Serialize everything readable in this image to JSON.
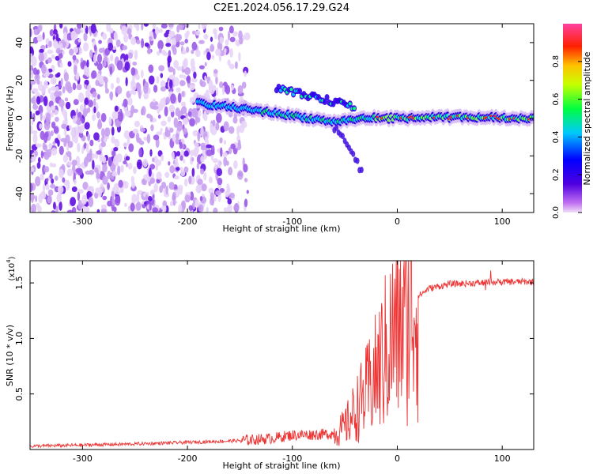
{
  "title": "C2E1.2024.056.17.29.G24",
  "chart_data": [
    {
      "type": "heatmap",
      "xlabel": "Height of straight line (km)",
      "ylabel": "Frequency (Hz)",
      "xlim": [
        -350,
        130
      ],
      "ylim": [
        -50,
        50
      ],
      "x_ticks": [
        -300,
        -200,
        -100,
        0,
        100
      ],
      "y_ticks": [
        -40,
        -20,
        0,
        20,
        40
      ],
      "colorbar": {
        "label": "Normalized spectral amplitude",
        "range": [
          0,
          1
        ],
        "ticks": [
          "0.0",
          "0.2",
          "0.4",
          "0.6",
          "0.8"
        ],
        "ticks_values": [
          0,
          0.2,
          0.4,
          0.6,
          0.8
        ]
      },
      "features": {
        "noise_region_x": [
          -350,
          -160
        ],
        "main_tone_track": {
          "x": [
            -190,
            -120,
            -60,
            -30,
            0,
            60,
            130
          ],
          "y": [
            8,
            3,
            -2,
            0,
            0,
            0.5,
            0
          ]
        },
        "secondary_track": {
          "x": [
            -115,
            -70,
            -40
          ],
          "y": [
            16,
            10,
            6
          ]
        },
        "drifting_branch": {
          "x": [
            -60,
            -45,
            -35
          ],
          "y": [
            -5,
            -15,
            -28
          ]
        }
      }
    },
    {
      "type": "line",
      "xlabel": "Height of straight line (km)",
      "ylabel": "SNR (10 * v/v)",
      "y_multiplier": "(x10",
      "y_multiplier_exp": "4",
      "y_multiplier_close": ")",
      "xlim": [
        -350,
        130
      ],
      "ylim": [
        0,
        1.7
      ],
      "x_ticks": [
        -300,
        -200,
        -100,
        0,
        100
      ],
      "y_ticks": [
        "0.5",
        "1.0",
        "1.5"
      ],
      "y_tick_values": [
        0.5,
        1.0,
        1.5
      ],
      "series": [
        {
          "color": "#ee3333",
          "envelope": {
            "x": [
              -350,
              -250,
              -180,
              -150,
              -120,
              -100,
              -60,
              -50,
              -40,
              -30,
              -20,
              -10,
              0,
              10,
              20,
              30,
              50,
              80,
              100,
              130
            ],
            "y": [
              0.03,
              0.05,
              0.07,
              0.08,
              0.1,
              0.13,
              0.14,
              0.2,
              0.35,
              0.5,
              0.68,
              0.9,
              1.1,
              1.25,
              1.38,
              1.45,
              1.49,
              1.5,
              1.51,
              1.51
            ]
          }
        }
      ]
    }
  ]
}
